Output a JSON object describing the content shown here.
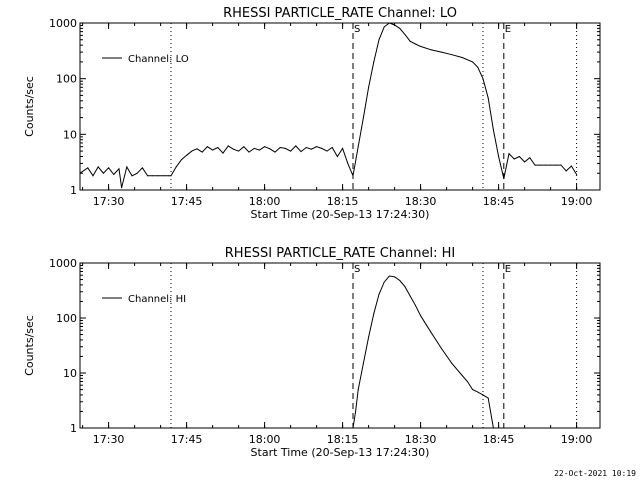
{
  "footer": {
    "stamp": "22-Oct-2021 10:19"
  },
  "chart_data": [
    {
      "type": "line",
      "title": "RHESSI PARTICLE_RATE Channel: LO",
      "xlabel": "Start Time (20-Sep-13 17:24:30)",
      "ylabel": "Counts/sec",
      "y_scale": "log",
      "ylim": [
        1,
        1000
      ],
      "xlim": [
        "17:24:30",
        "19:04:30"
      ],
      "x_ticks": [
        "17:30",
        "17:45",
        "18:00",
        "18:15",
        "18:30",
        "18:45",
        "19:00"
      ],
      "y_ticks": [
        "1",
        "10",
        "100",
        "1000"
      ],
      "grid": false,
      "legend": {
        "position": "top-left",
        "entries": [
          "Channel: LO"
        ]
      },
      "markers": [
        {
          "label": "S",
          "time": "18:17:00",
          "style": "dashed"
        },
        {
          "label": "E",
          "time": "18:46:00",
          "style": "dashed"
        },
        {
          "label": "",
          "time": "18:42:00",
          "style": "dotted"
        },
        {
          "label": "",
          "time": "17:42:00",
          "style": "dotted"
        },
        {
          "label": "",
          "time": "19:00:00",
          "style": "dotted"
        }
      ],
      "series": [
        {
          "name": "Channel: LO",
          "x": [
            "17:24:30",
            "17:26:00",
            "17:27:00",
            "17:28:00",
            "17:29:00",
            "17:30:00",
            "17:31:00",
            "17:32:00",
            "17:32:30",
            "17:33:30",
            "17:34:30",
            "17:35:30",
            "17:36:30",
            "17:37:30",
            "17:38:30",
            "17:39:30",
            "17:40:30",
            "17:41:30",
            "17:42:00",
            "17:43:00",
            "17:44:00",
            "17:45:00",
            "17:46:00",
            "17:47:00",
            "17:48:00",
            "17:49:00",
            "17:50:00",
            "17:51:00",
            "17:52:00",
            "17:53:00",
            "17:54:00",
            "17:55:00",
            "17:56:00",
            "17:57:00",
            "17:58:00",
            "17:59:00",
            "18:00:00",
            "18:01:00",
            "18:02:00",
            "18:03:00",
            "18:04:00",
            "18:05:00",
            "18:06:00",
            "18:07:00",
            "18:08:00",
            "18:09:00",
            "18:10:00",
            "18:11:00",
            "18:12:00",
            "18:13:00",
            "18:14:00",
            "18:15:00",
            "18:16:00",
            "18:17:00",
            "18:18:00",
            "18:19:00",
            "18:20:00",
            "18:21:00",
            "18:22:00",
            "18:23:00",
            "18:24:00",
            "18:25:00",
            "18:26:00",
            "18:27:00",
            "18:28:00",
            "18:29:00",
            "18:30:00",
            "18:32:00",
            "18:34:00",
            "18:36:00",
            "18:38:00",
            "18:40:00",
            "18:41:00",
            "18:42:00",
            "18:43:00",
            "18:44:00",
            "18:45:00",
            "18:46:00",
            "18:47:00",
            "18:48:00",
            "18:49:00",
            "18:50:00",
            "18:51:00",
            "18:52:00",
            "18:53:00",
            "18:54:00",
            "18:55:00",
            "18:56:00",
            "18:57:00",
            "18:58:00",
            "18:59:00",
            "19:00:00"
          ],
          "values": [
            2,
            2.5,
            1.8,
            2.6,
            2,
            2.5,
            1.9,
            2.4,
            1.1,
            2.6,
            1.8,
            2,
            2.5,
            1.8,
            1.8,
            1.8,
            1.8,
            1.8,
            1.8,
            2.6,
            3.5,
            4.2,
            5,
            5.5,
            4.8,
            6,
            5.2,
            5.8,
            4.6,
            6.2,
            5.4,
            5,
            6,
            4.8,
            5.6,
            5.2,
            6,
            5.5,
            4.8,
            5.8,
            5.6,
            5,
            6.2,
            4.9,
            5.8,
            5.4,
            6,
            5.6,
            5,
            5.8,
            4,
            5.6,
            3,
            1.8,
            6,
            20,
            70,
            200,
            500,
            850,
            1000,
            920,
            800,
            620,
            470,
            420,
            380,
            330,
            300,
            270,
            240,
            200,
            160,
            100,
            45,
            12,
            4,
            1.6,
            4.5,
            3.6,
            4,
            3.2,
            3.8,
            2.8,
            2.8,
            2.8,
            2.8,
            2.8,
            2.8,
            2.2,
            2.7,
            1.9
          ]
        }
      ]
    },
    {
      "type": "line",
      "title": "RHESSI PARTICLE_RATE Channel: HI",
      "xlabel": "Start Time (20-Sep-13 17:24:30)",
      "ylabel": "Counts/sec",
      "y_scale": "log",
      "ylim": [
        1,
        1000
      ],
      "xlim": [
        "17:24:30",
        "19:04:30"
      ],
      "x_ticks": [
        "17:30",
        "17:45",
        "18:00",
        "18:15",
        "18:30",
        "18:45",
        "19:00"
      ],
      "y_ticks": [
        "1",
        "10",
        "100",
        "1000"
      ],
      "grid": false,
      "legend": {
        "position": "top-left",
        "entries": [
          "Channel: HI"
        ]
      },
      "markers": [
        {
          "label": "S",
          "time": "18:17:00",
          "style": "dashed"
        },
        {
          "label": "E",
          "time": "18:46:00",
          "style": "dashed"
        },
        {
          "label": "",
          "time": "18:42:00",
          "style": "dotted"
        },
        {
          "label": "",
          "time": "17:42:00",
          "style": "dotted"
        },
        {
          "label": "",
          "time": "19:00:00",
          "style": "dotted"
        }
      ],
      "series": [
        {
          "name": "Channel: HI",
          "x": [
            "18:17:00",
            "18:17:30",
            "18:18:00",
            "18:19:00",
            "18:20:00",
            "18:21:00",
            "18:22:00",
            "18:23:00",
            "18:24:00",
            "18:25:00",
            "18:26:00",
            "18:27:00",
            "18:28:00",
            "18:29:00",
            "18:30:00",
            "18:32:00",
            "18:34:00",
            "18:36:00",
            "18:38:00",
            "18:39:00",
            "18:40:00",
            "18:41:00",
            "18:42:00",
            "18:43:00",
            "18:44:00"
          ],
          "values": [
            1,
            2,
            5,
            15,
            45,
            120,
            270,
            450,
            580,
            560,
            480,
            370,
            250,
            170,
            110,
            55,
            28,
            15,
            9,
            7,
            5,
            4.5,
            4,
            3.5,
            1
          ]
        }
      ]
    }
  ]
}
